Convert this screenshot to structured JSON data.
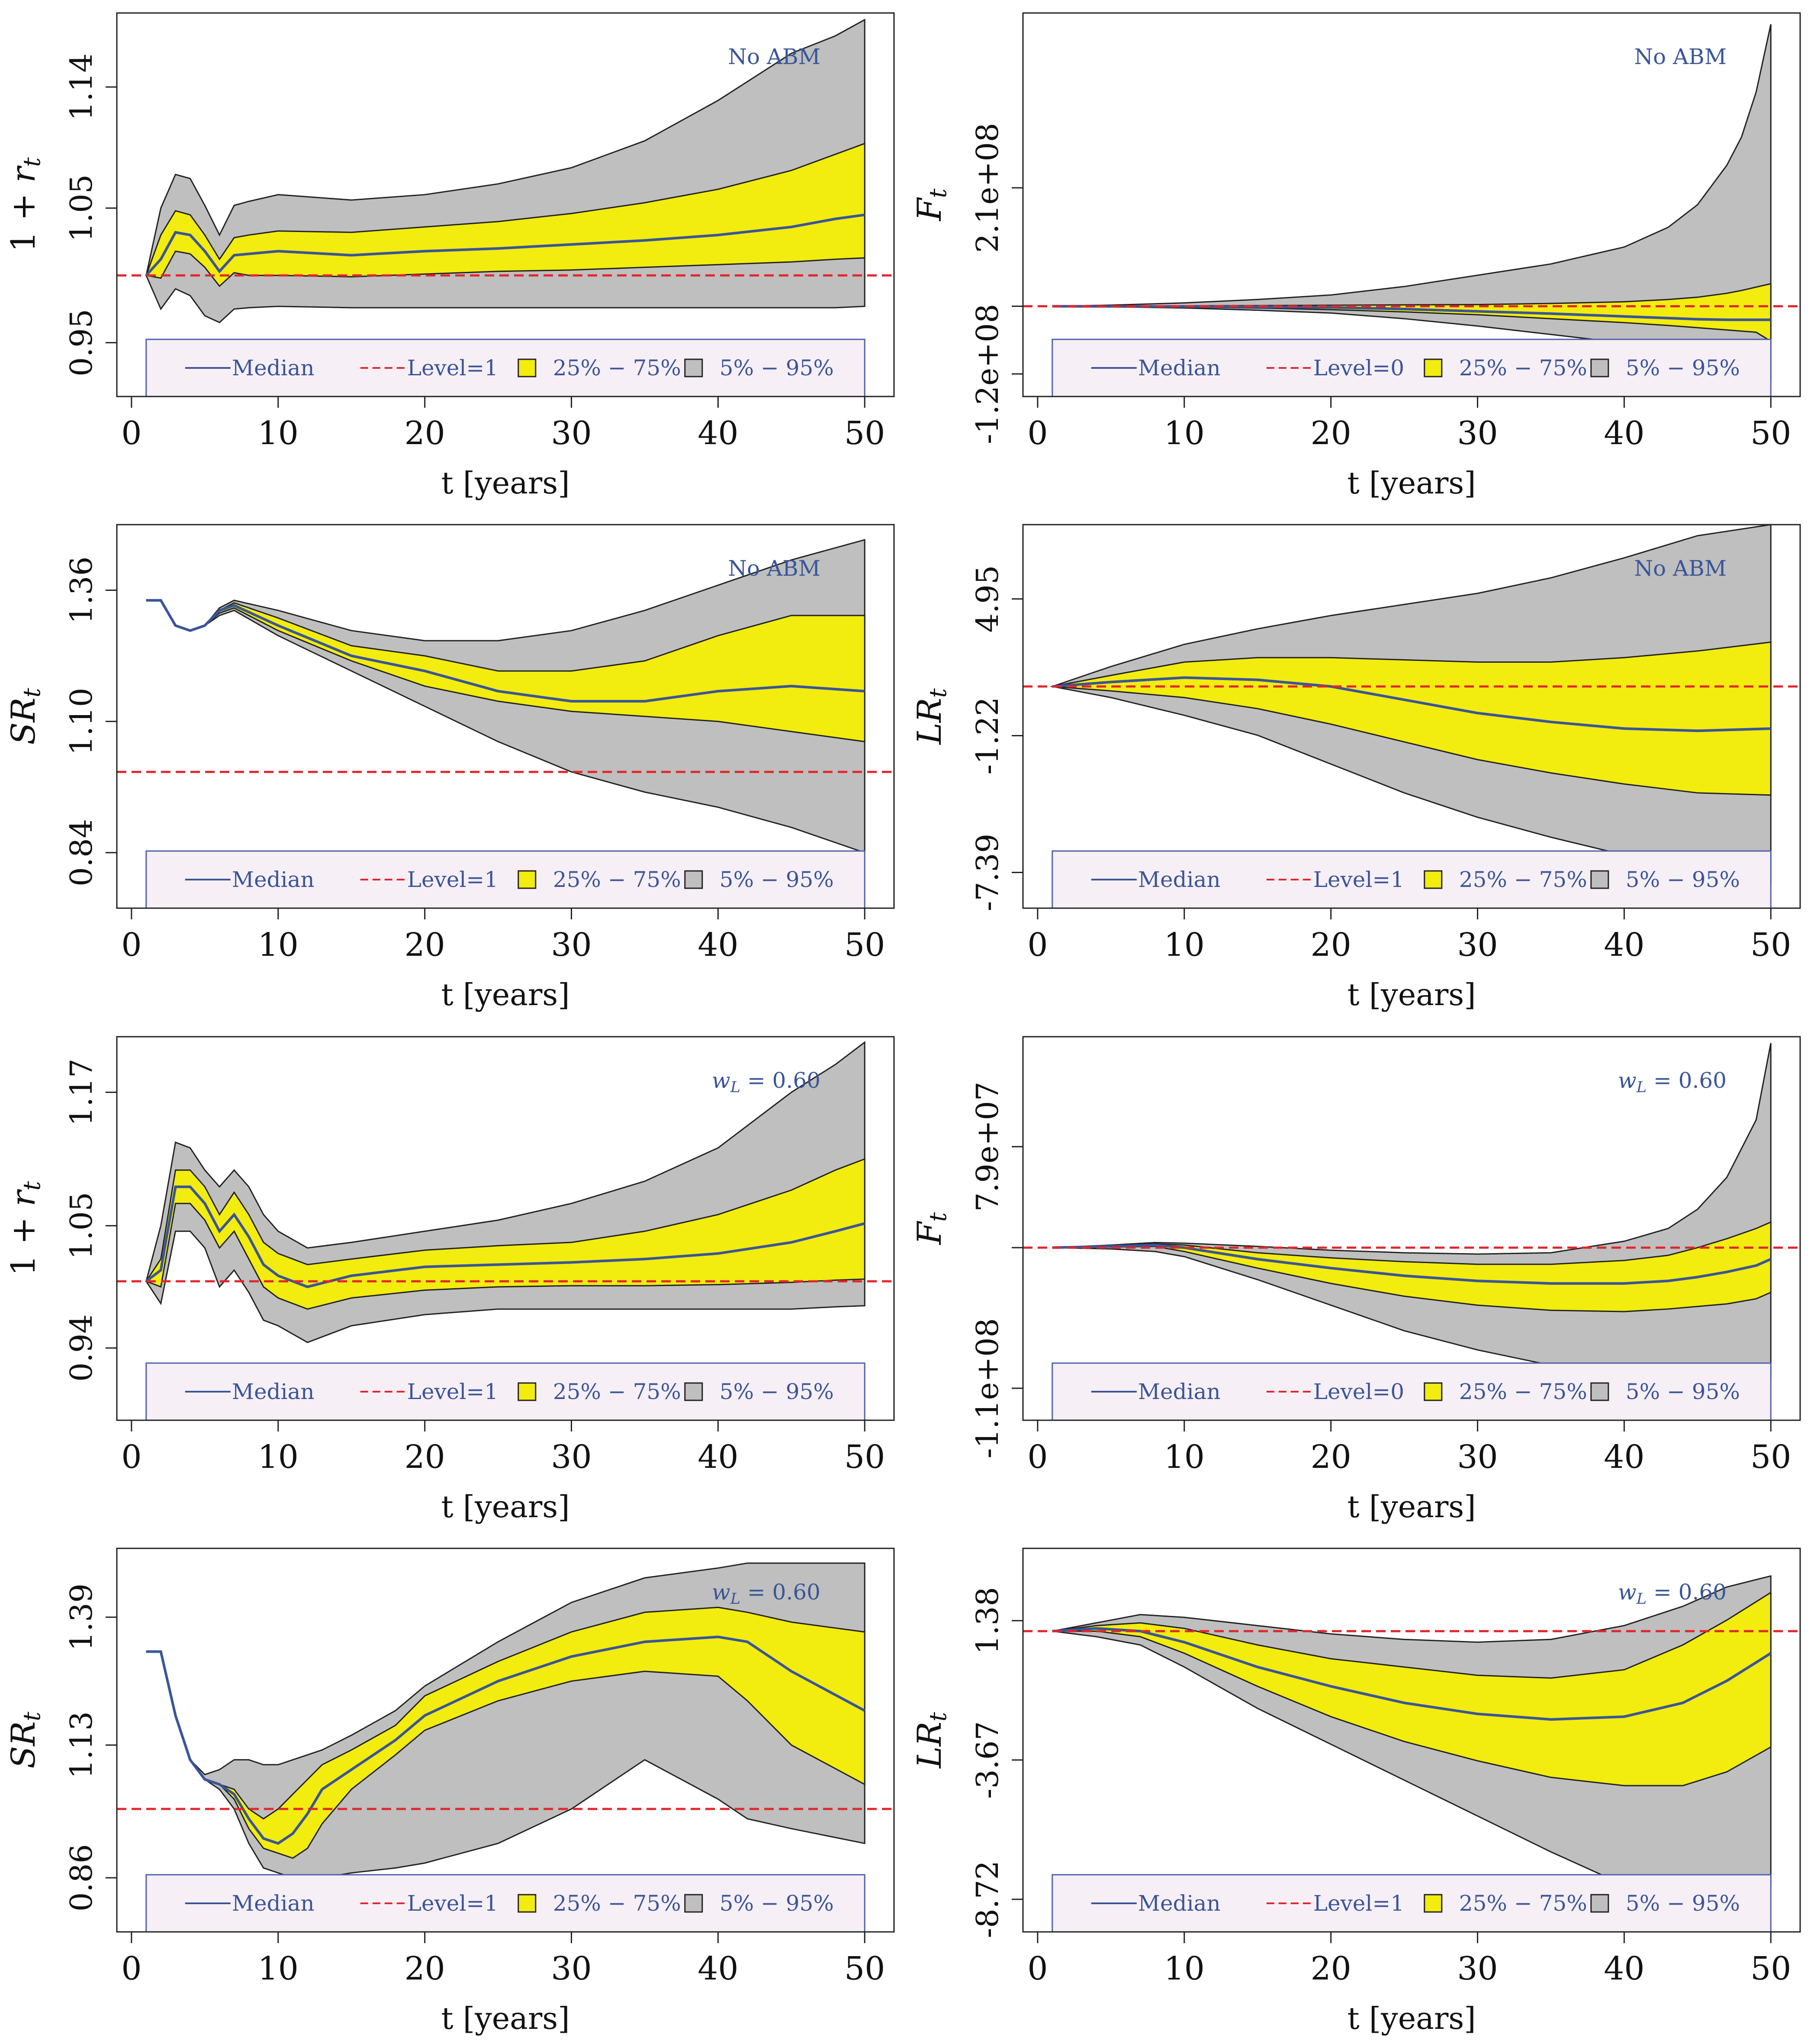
{
  "colors": {
    "grey_band": "#BEBFBE",
    "yellow_band": "#F2EC0F",
    "median": "#3A5598",
    "level": "#E3252C",
    "legend_bg": "#F7EFF6",
    "legend_border": "#4D62A8",
    "annotation": "#3A5598"
  },
  "legend": {
    "median": "Median",
    "band_inner": "25% − 75%",
    "band_outer": "5% − 95%"
  },
  "chart_data": [
    {
      "type": "area",
      "ylabel": "1 + r_t",
      "xlabel": "t [years]",
      "annotation": "No ABM",
      "legend_level": "Level=1",
      "xlim": [
        -1,
        52
      ],
      "ylim": [
        0.91,
        1.195
      ],
      "xticks": [
        0,
        10,
        20,
        30,
        40,
        50
      ],
      "yticks": [
        0.95,
        1.05,
        1.14
      ],
      "ytick_labels": [
        "0.95",
        "1.05",
        "1.14"
      ],
      "level": 1.0,
      "x": [
        1,
        2,
        3,
        4,
        5,
        6,
        7,
        8,
        10,
        15,
        20,
        25,
        30,
        35,
        40,
        45,
        48,
        50
      ],
      "p05": [
        1.0,
        0.975,
        0.99,
        0.985,
        0.97,
        0.965,
        0.975,
        0.976,
        0.977,
        0.976,
        0.976,
        0.976,
        0.976,
        0.976,
        0.976,
        0.976,
        0.976,
        0.977
      ],
      "p25": [
        1.0,
        0.998,
        1.018,
        1.016,
        1.006,
        0.992,
        1.002,
        1.0,
        1.0,
        0.999,
        1.001,
        1.003,
        1.004,
        1.006,
        1.008,
        1.01,
        1.012,
        1.013
      ],
      "p50": [
        1.0,
        1.012,
        1.032,
        1.03,
        1.018,
        1.003,
        1.015,
        1.016,
        1.018,
        1.015,
        1.018,
        1.02,
        1.023,
        1.026,
        1.03,
        1.036,
        1.042,
        1.045
      ],
      "p75": [
        1.0,
        1.03,
        1.048,
        1.045,
        1.03,
        1.012,
        1.028,
        1.03,
        1.033,
        1.032,
        1.036,
        1.04,
        1.046,
        1.054,
        1.064,
        1.078,
        1.09,
        1.098
      ],
      "p95": [
        1.0,
        1.05,
        1.075,
        1.072,
        1.052,
        1.03,
        1.052,
        1.055,
        1.06,
        1.056,
        1.06,
        1.068,
        1.08,
        1.1,
        1.13,
        1.165,
        1.178,
        1.19
      ]
    },
    {
      "type": "area",
      "ylabel": "F_t",
      "xlabel": "t [years]",
      "annotation": "No ABM",
      "legend_level": "Level=0",
      "xlim": [
        -1,
        52
      ],
      "ylim": [
        -160000000.0,
        520000000.0
      ],
      "xticks": [
        0,
        10,
        20,
        30,
        40,
        50
      ],
      "yticks": [
        -120000000.0,
        0,
        210000000.0
      ],
      "ytick_labels": [
        "-1.2e+08",
        "",
        "2.1e+08"
      ],
      "level": 0,
      "x": [
        1,
        5,
        10,
        15,
        20,
        25,
        30,
        35,
        40,
        43,
        45,
        47,
        48,
        49,
        50
      ],
      "p05": [
        0,
        -1000000.0,
        -3000000.0,
        -7000000.0,
        -12000000.0,
        -22000000.0,
        -35000000.0,
        -50000000.0,
        -65000000.0,
        -75000000.0,
        -82000000.0,
        -89000000.0,
        -93000000.0,
        -97000000.0,
        -130000000.0
      ],
      "p25": [
        0,
        -500000.0,
        -1500000.0,
        -3000000.0,
        -6000000.0,
        -10000000.0,
        -15000000.0,
        -22000000.0,
        -29000000.0,
        -34000000.0,
        -38000000.0,
        -42000000.0,
        -44000000.0,
        -46000000.0,
        -62000000.0
      ],
      "p50": [
        0,
        -200000.0,
        -500000.0,
        -1000000.0,
        -2000000.0,
        -5000000.0,
        -9000000.0,
        -13000000.0,
        -18000000.0,
        -21000000.0,
        -23000000.0,
        -24000000.0,
        -24000000.0,
        -24000000.0,
        -24000000.0
      ],
      "p75": [
        0,
        300000.0,
        800000.0,
        1200000.0,
        1800000.0,
        2500000.0,
        3000000.0,
        5000000.0,
        8000000.0,
        12000000.0,
        16000000.0,
        23000000.0,
        28000000.0,
        34000000.0,
        40000000.0
      ],
      "p95": [
        0,
        2000000.0,
        6000000.0,
        12000000.0,
        20000000.0,
        35000000.0,
        55000000.0,
        75000000.0,
        105000000.0,
        140000000.0,
        180000000.0,
        250000000.0,
        300000000.0,
        380000000.0,
        500000000.0
      ]
    },
    {
      "type": "area",
      "ylabel": "SR_t",
      "xlabel": "t [years]",
      "annotation": "No ABM",
      "legend_level": "Level=1",
      "xlim": [
        -1,
        52
      ],
      "ylim": [
        0.73,
        1.49
      ],
      "xticks": [
        0,
        10,
        20,
        30,
        40,
        50
      ],
      "yticks": [
        0.84,
        1.1,
        1.36
      ],
      "ytick_labels": [
        "0.84",
        "1.10",
        "1.36"
      ],
      "level": 1.0,
      "x": [
        1,
        2,
        3,
        4,
        5,
        6,
        7,
        10,
        15,
        20,
        25,
        30,
        35,
        40,
        45,
        50
      ],
      "p05": [
        1.34,
        1.34,
        1.29,
        1.28,
        1.29,
        1.31,
        1.32,
        1.27,
        1.2,
        1.13,
        1.06,
        1.0,
        0.96,
        0.93,
        0.89,
        0.84
      ],
      "p25": [
        1.34,
        1.34,
        1.29,
        1.28,
        1.29,
        1.315,
        1.325,
        1.28,
        1.22,
        1.17,
        1.14,
        1.12,
        1.11,
        1.1,
        1.08,
        1.06
      ],
      "p50": [
        1.34,
        1.34,
        1.29,
        1.28,
        1.29,
        1.32,
        1.33,
        1.29,
        1.23,
        1.2,
        1.16,
        1.14,
        1.14,
        1.16,
        1.17,
        1.16
      ],
      "p75": [
        1.34,
        1.34,
        1.29,
        1.28,
        1.29,
        1.32,
        1.335,
        1.305,
        1.25,
        1.23,
        1.2,
        1.2,
        1.22,
        1.27,
        1.31,
        1.31
      ],
      "p95": [
        1.34,
        1.34,
        1.29,
        1.28,
        1.29,
        1.325,
        1.34,
        1.32,
        1.28,
        1.26,
        1.26,
        1.28,
        1.32,
        1.37,
        1.42,
        1.46
      ]
    },
    {
      "type": "area",
      "ylabel": "LR_t",
      "xlabel": "t [years]",
      "annotation": "No ABM",
      "legend_level": "Level=1",
      "xlim": [
        -1,
        52
      ],
      "ylim": [
        -9.0,
        8.3
      ],
      "xticks": [
        0,
        10,
        20,
        30,
        40,
        50
      ],
      "yticks": [
        -7.39,
        -1.22,
        4.95
      ],
      "ytick_labels": [
        "-7.39",
        "-1.22",
        "4.95"
      ],
      "level": 1.0,
      "x": [
        1,
        5,
        10,
        15,
        20,
        25,
        30,
        35,
        40,
        45,
        50
      ],
      "p05": [
        1.0,
        0.5,
        -0.3,
        -1.2,
        -2.5,
        -3.8,
        -4.9,
        -5.8,
        -6.6,
        -7.3,
        -7.9
      ],
      "p25": [
        1.0,
        0.8,
        0.5,
        0.0,
        -0.7,
        -1.5,
        -2.3,
        -2.9,
        -3.4,
        -3.8,
        -3.9
      ],
      "p50": [
        1.0,
        1.2,
        1.4,
        1.3,
        1.0,
        0.4,
        -0.2,
        -0.6,
        -0.9,
        -1.0,
        -0.9
      ],
      "p75": [
        1.0,
        1.5,
        2.1,
        2.3,
        2.3,
        2.2,
        2.1,
        2.1,
        2.3,
        2.6,
        3.0
      ],
      "p95": [
        1.0,
        1.9,
        2.9,
        3.6,
        4.2,
        4.7,
        5.2,
        5.9,
        6.8,
        7.8,
        8.3
      ]
    },
    {
      "type": "area",
      "ylabel": "1 + r_t",
      "xlabel": "t [years]",
      "annotation": "w_L = 0.60",
      "legend_level": "Level=1",
      "xlim": [
        -1,
        52
      ],
      "ylim": [
        0.875,
        1.22
      ],
      "xticks": [
        0,
        10,
        20,
        30,
        40,
        50
      ],
      "yticks": [
        0.94,
        1.05,
        1.17
      ],
      "ytick_labels": [
        "0.94",
        "1.05",
        "1.17"
      ],
      "level": 1.0,
      "x": [
        1,
        2,
        3,
        4,
        5,
        6,
        7,
        8,
        9,
        10,
        12,
        15,
        20,
        25,
        30,
        35,
        40,
        45,
        48,
        50
      ],
      "p05": [
        1.0,
        0.98,
        1.045,
        1.045,
        1.03,
        0.995,
        1.01,
        0.99,
        0.965,
        0.96,
        0.945,
        0.96,
        0.97,
        0.975,
        0.975,
        0.975,
        0.975,
        0.975,
        0.977,
        0.978
      ],
      "p25": [
        1.0,
        0.995,
        1.07,
        1.07,
        1.055,
        1.03,
        1.045,
        1.02,
        0.995,
        0.985,
        0.975,
        0.985,
        0.992,
        0.995,
        0.996,
        0.996,
        0.997,
        0.999,
        1.001,
        1.002
      ],
      "p50": [
        1.0,
        1.01,
        1.085,
        1.085,
        1.07,
        1.045,
        1.06,
        1.04,
        1.015,
        1.005,
        0.995,
        1.005,
        1.013,
        1.015,
        1.017,
        1.02,
        1.025,
        1.035,
        1.045,
        1.052
      ],
      "p75": [
        1.0,
        1.02,
        1.1,
        1.1,
        1.085,
        1.06,
        1.08,
        1.06,
        1.035,
        1.025,
        1.015,
        1.02,
        1.028,
        1.032,
        1.035,
        1.045,
        1.06,
        1.082,
        1.1,
        1.11
      ],
      "p95": [
        1.0,
        1.05,
        1.125,
        1.12,
        1.1,
        1.085,
        1.1,
        1.085,
        1.06,
        1.045,
        1.03,
        1.035,
        1.045,
        1.055,
        1.07,
        1.09,
        1.12,
        1.17,
        1.195,
        1.215
      ]
    },
    {
      "type": "area",
      "ylabel": "F_t",
      "xlabel": "t [years]",
      "annotation": "w_L = 0.60",
      "legend_level": "Level=0",
      "xlim": [
        -1,
        52
      ],
      "ylim": [
        -135000000.0,
        165000000.0
      ],
      "xticks": [
        0,
        10,
        20,
        30,
        40,
        50
      ],
      "yticks": [
        -110000000.0,
        0,
        79000000.0
      ],
      "ytick_labels": [
        "-1.1e+08",
        "",
        "7.9e+07"
      ],
      "level": 0,
      "x": [
        1,
        5,
        8,
        10,
        15,
        20,
        25,
        30,
        35,
        40,
        43,
        45,
        47,
        49,
        50
      ],
      "p05": [
        0,
        -1000000.0,
        -3000000.0,
        -7000000.0,
        -25000000.0,
        -45000000.0,
        -65000000.0,
        -80000000.0,
        -92000000.0,
        -100000000.0,
        -105000000.0,
        -108000000.0,
        -107000000.0,
        -105000000.0,
        -102000000.0
      ],
      "p25": [
        0,
        500000.0,
        1000000.0,
        -3000000.0,
        -16000000.0,
        -28000000.0,
        -38000000.0,
        -45000000.0,
        -49000000.0,
        -50000000.0,
        -48000000.0,
        -46000000.0,
        -44000000.0,
        -40000000.0,
        -35000000.0
      ],
      "p50": [
        0,
        1000000.0,
        2000000.0,
        0.0,
        -9000000.0,
        -16000000.0,
        -22000000.0,
        -26000000.0,
        -28000000.0,
        -28000000.0,
        -26000000.0,
        -23000000.0,
        -19000000.0,
        -14000000.0,
        -9000000.0
      ],
      "p75": [
        0,
        1500000.0,
        3000000.0,
        2000000.0,
        -4000000.0,
        -8000000.0,
        -11000000.0,
        -13000000.0,
        -13000000.0,
        -10000000.0,
        -6000000.0,
        0.0,
        7000000.0,
        15000000.0,
        20000000.0
      ],
      "p95": [
        0,
        2000000.0,
        4000000.0,
        3500000.0,
        1000000.0,
        -2000000.0,
        -4000000.0,
        -5000000.0,
        -4000000.0,
        5000000.0,
        15000000.0,
        30000000.0,
        55000000.0,
        100000000.0,
        160000000.0
      ]
    },
    {
      "type": "area",
      "ylabel": "SR_t",
      "xlabel": "t [years]",
      "annotation": "w_L = 0.60",
      "legend_level": "Level=1",
      "xlim": [
        -1,
        52
      ],
      "ylim": [
        0.75,
        1.53
      ],
      "xticks": [
        0,
        10,
        20,
        30,
        40,
        50
      ],
      "yticks": [
        0.86,
        1.13,
        1.39
      ],
      "ytick_labels": [
        "0.86",
        "1.13",
        "1.39"
      ],
      "level": 1.0,
      "x": [
        1,
        2,
        3,
        4,
        5,
        6,
        7,
        8,
        9,
        10,
        11,
        12,
        13,
        15,
        18,
        20,
        25,
        30,
        35,
        40,
        42,
        45,
        50
      ],
      "p05": [
        1.32,
        1.32,
        1.19,
        1.1,
        1.06,
        1.04,
        1.0,
        0.93,
        0.88,
        0.87,
        0.86,
        0.86,
        0.86,
        0.87,
        0.88,
        0.89,
        0.93,
        1.0,
        1.1,
        1.02,
        0.98,
        0.96,
        0.93
      ],
      "p25": [
        1.32,
        1.32,
        1.19,
        1.1,
        1.06,
        1.05,
        1.02,
        0.96,
        0.92,
        0.91,
        0.9,
        0.92,
        0.97,
        1.04,
        1.11,
        1.16,
        1.22,
        1.26,
        1.28,
        1.27,
        1.22,
        1.13,
        1.05
      ],
      "p50": [
        1.32,
        1.32,
        1.19,
        1.1,
        1.06,
        1.05,
        1.03,
        0.98,
        0.94,
        0.93,
        0.95,
        0.99,
        1.04,
        1.08,
        1.14,
        1.19,
        1.26,
        1.31,
        1.34,
        1.35,
        1.34,
        1.28,
        1.2
      ],
      "p75": [
        1.32,
        1.32,
        1.19,
        1.1,
        1.06,
        1.05,
        1.04,
        1.0,
        0.98,
        1.0,
        1.03,
        1.06,
        1.09,
        1.12,
        1.17,
        1.23,
        1.3,
        1.36,
        1.4,
        1.41,
        1.4,
        1.38,
        1.36
      ],
      "p95": [
        1.32,
        1.32,
        1.19,
        1.1,
        1.07,
        1.08,
        1.1,
        1.1,
        1.09,
        1.09,
        1.1,
        1.11,
        1.12,
        1.15,
        1.2,
        1.25,
        1.34,
        1.42,
        1.47,
        1.49,
        1.5,
        1.5,
        1.5
      ]
    },
    {
      "type": "area",
      "ylabel": "LR_t",
      "xlabel": "t [years]",
      "annotation": "w_L = 0.60",
      "legend_level": "Level=1",
      "xlim": [
        -1,
        52
      ],
      "ylim": [
        -9.9,
        4.0
      ],
      "xticks": [
        0,
        10,
        20,
        30,
        40,
        50
      ],
      "yticks": [
        -8.72,
        -3.67,
        1.38
      ],
      "ytick_labels": [
        "-8.72",
        "-3.67",
        "1.38"
      ],
      "level": 1.0,
      "x": [
        1,
        4,
        7,
        10,
        15,
        20,
        25,
        30,
        35,
        40,
        44,
        47,
        50
      ],
      "p05": [
        1.0,
        0.8,
        0.5,
        -0.3,
        -1.8,
        -3.1,
        -4.4,
        -5.7,
        -7.0,
        -8.2,
        -8.9,
        -8.8,
        -8.2
      ],
      "p25": [
        1.0,
        1.0,
        0.8,
        0.2,
        -1.0,
        -2.1,
        -3.0,
        -3.7,
        -4.3,
        -4.6,
        -4.6,
        -4.1,
        -3.2
      ],
      "p50": [
        1.0,
        1.1,
        1.0,
        0.6,
        -0.3,
        -1.0,
        -1.6,
        -2.0,
        -2.2,
        -2.1,
        -1.6,
        -0.8,
        0.2
      ],
      "p75": [
        1.0,
        1.2,
        1.3,
        1.1,
        0.5,
        0.0,
        -0.3,
        -0.6,
        -0.7,
        -0.4,
        0.5,
        1.4,
        2.4
      ],
      "p95": [
        1.0,
        1.3,
        1.6,
        1.5,
        1.2,
        0.9,
        0.7,
        0.6,
        0.7,
        1.2,
        1.9,
        2.6,
        3.0
      ]
    }
  ]
}
